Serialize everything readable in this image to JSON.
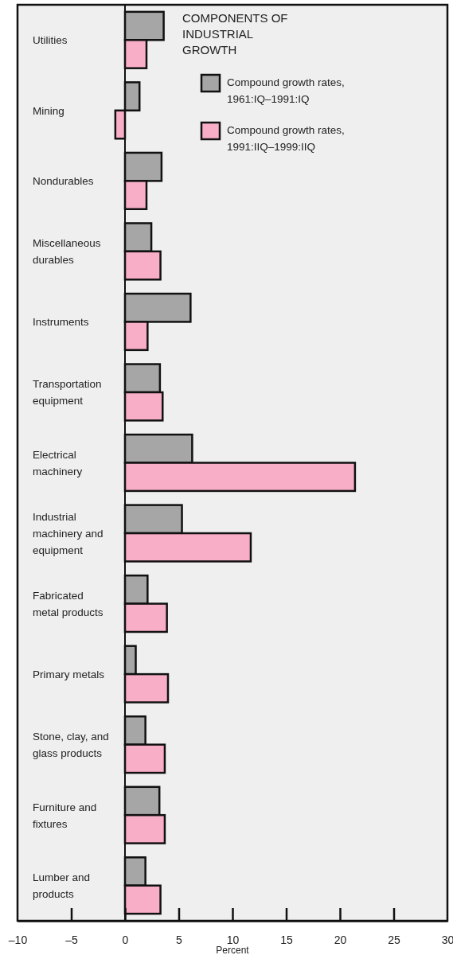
{
  "chart_data": {
    "type": "bar",
    "orientation": "horizontal",
    "title": "COMPONENTS OF INDUSTRIAL GROWTH",
    "xlabel": "Percent",
    "categories": [
      "Utilities",
      "Mining",
      "Nondurables",
      "Miscellaneous durables",
      "Instruments",
      "Transportation equipment",
      "Electrical machinery",
      "Industrial machinery and equipment",
      "Fabricated metal products",
      "Primary metals",
      "Stone, clay, and glass products",
      "Furniture and fixtures",
      "Lumber and products"
    ],
    "series": [
      {
        "name": "Compound growth rates, 1961:IQ–1991:IQ",
        "color": "#a6a6a6",
        "values": [
          3.6,
          1.35,
          3.4,
          2.45,
          6.1,
          3.25,
          6.25,
          5.3,
          2.1,
          1.0,
          1.9,
          3.2,
          1.9
        ]
      },
      {
        "name": "Compound growth rates, 1991:IIQ–1999:IIQ",
        "color": "#f7aec6",
        "values": [
          2.0,
          -0.9,
          2.0,
          3.3,
          2.1,
          3.5,
          21.4,
          11.7,
          3.9,
          4.0,
          3.7,
          3.7,
          3.3
        ]
      }
    ],
    "xlim": [
      -10,
      30
    ],
    "xticks": [
      {
        "value": -10,
        "label": "–10"
      },
      {
        "value": -5,
        "label": "–5"
      },
      0,
      5,
      10,
      15,
      20,
      25,
      30
    ],
    "legend": "top right"
  }
}
